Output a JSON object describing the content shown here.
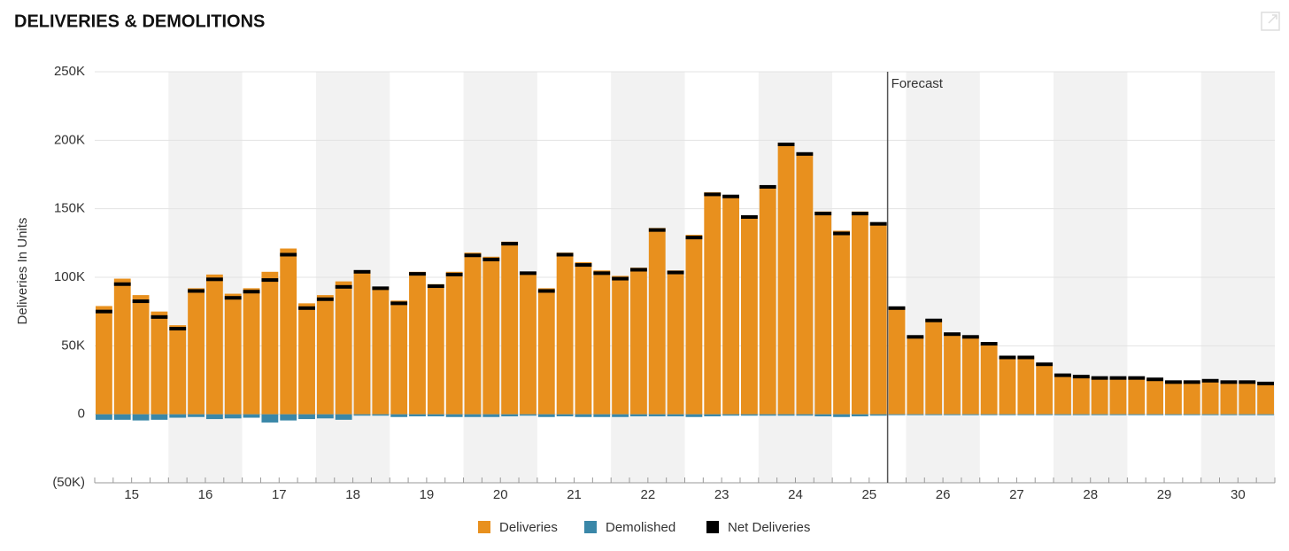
{
  "chart_data": {
    "type": "bar",
    "title": "DELIVERIES & DEMOLITIONS",
    "y_label": "Deliveries In Units",
    "year_labels": [
      "15",
      "16",
      "17",
      "18",
      "19",
      "20",
      "21",
      "22",
      "23",
      "24",
      "25",
      "26",
      "27",
      "28",
      "29",
      "30"
    ],
    "ylim": [
      -50,
      250
    ],
    "yticks": [
      {
        "value": -50,
        "label": "(50K)"
      },
      0,
      {
        "value": 50,
        "label": "50K"
      },
      {
        "value": 100,
        "label": "100K"
      },
      {
        "value": 150,
        "label": "150K"
      },
      {
        "value": 200,
        "label": "200K"
      },
      {
        "value": 250,
        "label": "250K"
      }
    ],
    "grid": true,
    "forecast": {
      "label": "Forecast",
      "start_index": 43
    },
    "series": [
      {
        "name": "Deliveries",
        "color": "#e8901e",
        "values": [
          79,
          99,
          87,
          75,
          65,
          92,
          102,
          88,
          92,
          104,
          121,
          81,
          87,
          97,
          105,
          93,
          83,
          104,
          95,
          104,
          118,
          115,
          126,
          104,
          92,
          118,
          111,
          105,
          101,
          107,
          136,
          105,
          131,
          162,
          160,
          145,
          167,
          198,
          191,
          148,
          134,
          148,
          140,
          78,
          57,
          69,
          59,
          57,
          52,
          42,
          42,
          37,
          29,
          28,
          27,
          27,
          27,
          26,
          24,
          24,
          25,
          24,
          24,
          23
        ]
      },
      {
        "name": "Demolished",
        "color": "#3a87a8",
        "values": [
          -4,
          -4,
          -4.5,
          -4,
          -2.5,
          -2,
          -3.5,
          -3,
          -2.5,
          -6,
          -4.5,
          -3.5,
          -3,
          -4,
          -1,
          -1,
          -2,
          -1.5,
          -1.5,
          -2,
          -2,
          -2,
          -1.5,
          -1,
          -2,
          -1.5,
          -2,
          -2,
          -2,
          -1.5,
          -1.5,
          -1.5,
          -2,
          -1.5,
          -1,
          -1,
          -1,
          -1,
          -1,
          -1.5,
          -2,
          -1.5,
          -1,
          -0.5,
          -0.5,
          -0.5,
          -0.5,
          -0.5,
          -0.5,
          -0.5,
          -0.5,
          -0.5,
          -0.5,
          -0.5,
          -0.5,
          -0.5,
          -0.5,
          -0.5,
          -0.5,
          -0.5,
          -0.5,
          -0.5,
          -0.5,
          -0.5
        ]
      },
      {
        "name": "Net Deliveries",
        "color": "#000000",
        "values": [
          75,
          95,
          82.5,
          71,
          62.5,
          90,
          98.5,
          85,
          89.5,
          98,
          116.5,
          77.5,
          84,
          93,
          104,
          92,
          81,
          102.5,
          93.5,
          102,
          116,
          113,
          124.5,
          103,
          90,
          116.5,
          109,
          103,
          99,
          105.5,
          134.5,
          103.5,
          129,
          160.5,
          159,
          144,
          166,
          197,
          190,
          146.5,
          132,
          146.5,
          139,
          77.5,
          56.5,
          68.5,
          58.5,
          56.5,
          51.5,
          41.5,
          41.5,
          36.5,
          28.5,
          27.5,
          26.5,
          26.5,
          26.5,
          25.5,
          23.5,
          23.5,
          24.5,
          23.5,
          23.5,
          22.5
        ]
      }
    ]
  }
}
